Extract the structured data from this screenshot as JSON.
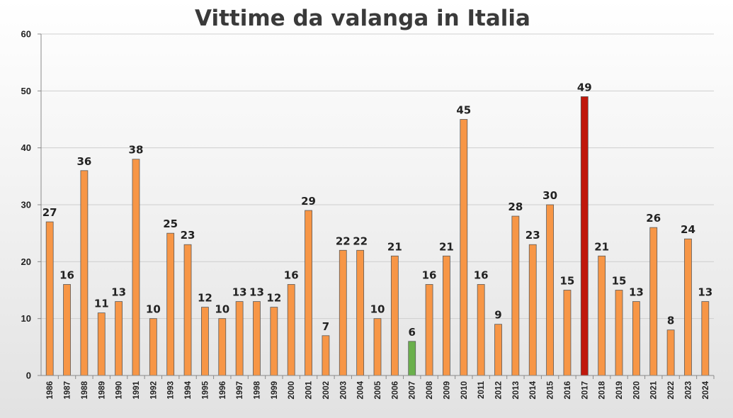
{
  "chart_data": {
    "type": "bar",
    "title": "Vittime da valanga in Italia",
    "xlabel": "",
    "ylabel": "",
    "ylim": [
      0,
      60
    ],
    "yticks": [
      0,
      10,
      20,
      30,
      40,
      50,
      60
    ],
    "grid": true,
    "categories": [
      "1986",
      "1987",
      "1988",
      "1989",
      "1990",
      "1991",
      "1992",
      "1993",
      "1994",
      "1995",
      "1996",
      "1997",
      "1998",
      "1999",
      "2000",
      "2001",
      "2002",
      "2003",
      "2004",
      "2005",
      "2006",
      "2007",
      "2008",
      "2009",
      "2010",
      "2011",
      "2012",
      "2013",
      "2014",
      "2015",
      "2016",
      "2017",
      "2018",
      "2019",
      "2020",
      "2021",
      "2022",
      "2023",
      "2024"
    ],
    "values": [
      27,
      16,
      36,
      11,
      13,
      38,
      10,
      25,
      23,
      12,
      10,
      13,
      13,
      12,
      16,
      29,
      7,
      22,
      22,
      10,
      21,
      6,
      16,
      21,
      45,
      16,
      9,
      28,
      23,
      30,
      15,
      49,
      21,
      15,
      13,
      26,
      8,
      24,
      13
    ],
    "colors": {
      "default": "#f79646",
      "highlight_max": "#c0180c",
      "highlight_min": "#6ab04c"
    },
    "highlighted": {
      "2017": "highlight_max",
      "2007": "highlight_min"
    }
  }
}
